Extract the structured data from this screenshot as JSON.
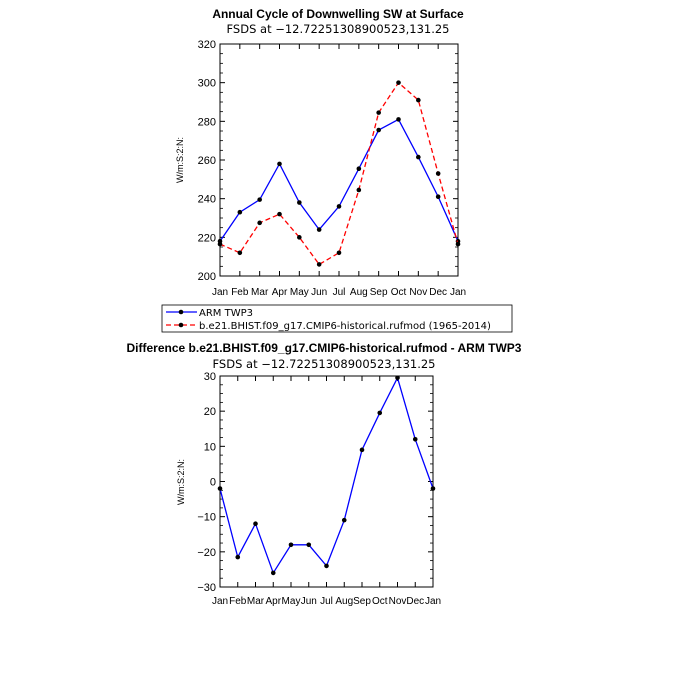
{
  "chart_data": [
    {
      "type": "line",
      "title": "Annual Cycle of Downwelling SW at Surface",
      "subtitle": "FSDS at −12.72251308900523,131.25",
      "ylabel": "W/m:S:2:N:",
      "xlabel": "",
      "ylim": [
        200,
        320
      ],
      "yticks": [
        200,
        220,
        240,
        260,
        280,
        300,
        320
      ],
      "categories": [
        "Jan",
        "Feb",
        "Mar",
        "Apr",
        "May",
        "Jun",
        "Jul",
        "Aug",
        "Sep",
        "Oct",
        "Nov",
        "Dec",
        "Jan"
      ],
      "series": [
        {
          "name": "ARM TWP3",
          "color": "#0000ff",
          "dash": "solid",
          "values": [
            218,
            233,
            239.5,
            258,
            238,
            224,
            236,
            255.5,
            275.5,
            281,
            261.5,
            241,
            218
          ]
        },
        {
          "name": "b.e21.BHIST.f09_g17.CMIP6-historical.rufmod (1965-2014)",
          "color": "#ff0000",
          "dash": "dashed",
          "values": [
            216.5,
            212,
            227.5,
            232,
            220,
            206,
            212,
            244.5,
            284.5,
            300,
            291,
            253,
            216.5
          ]
        }
      ]
    },
    {
      "type": "line",
      "title": "Difference b.e21.BHIST.f09_g17.CMIP6-historical.rufmod - ARM TWP3",
      "subtitle": "FSDS at −12.72251308900523,131.25",
      "ylabel": "W/m:S:2:N:",
      "xlabel": "",
      "ylim": [
        -30,
        30
      ],
      "yticks": [
        -30,
        -20,
        -10,
        0,
        10,
        20,
        30
      ],
      "categories": [
        "Jan",
        "Feb",
        "Mar",
        "Apr",
        "May",
        "Jun",
        "Jul",
        "Aug",
        "Sep",
        "Oct",
        "Nov",
        "Dec",
        "Jan"
      ],
      "series": [
        {
          "name": "Difference",
          "color": "#0000ff",
          "dash": "solid",
          "values": [
            -2,
            -21.5,
            -12,
            -26,
            -18,
            -18,
            -24,
            -11,
            9,
            19.5,
            29.5,
            12,
            -2
          ]
        }
      ]
    }
  ]
}
